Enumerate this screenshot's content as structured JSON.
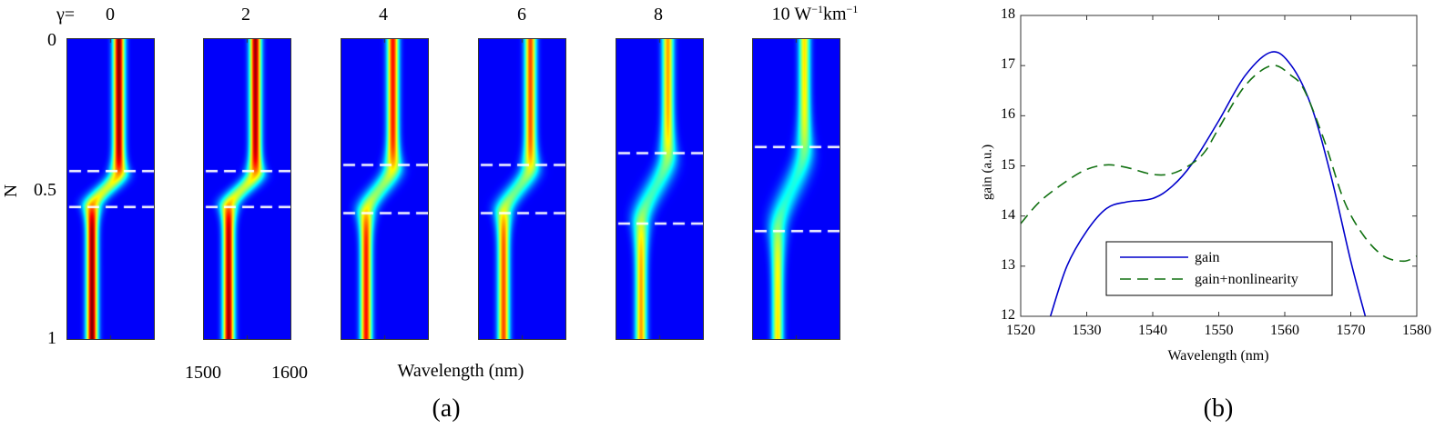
{
  "chart_data": [
    {
      "type": "heatmap",
      "panel_label": "(a)",
      "gamma_prefix": "γ=",
      "panels": [
        {
          "title": "0",
          "gamma": 0,
          "dashed_N": [
            0.44,
            0.56
          ],
          "peak": 1.0
        },
        {
          "title": "2",
          "gamma": 2,
          "dashed_N": [
            0.44,
            0.56
          ],
          "peak": 0.97
        },
        {
          "title": "4",
          "gamma": 4,
          "dashed_N": [
            0.42,
            0.58
          ],
          "peak": 0.85
        },
        {
          "title": "6",
          "gamma": 6,
          "dashed_N": [
            0.42,
            0.58
          ],
          "peak": 0.78
        },
        {
          "title": "8",
          "gamma": 8,
          "dashed_N": [
            0.38,
            0.615
          ],
          "peak": 0.68
        },
        {
          "title": "10",
          "gamma": 10,
          "dashed_N": [
            0.36,
            0.64
          ],
          "peak": 0.6
        }
      ],
      "unit_main": "W",
      "unit_sup1": "−1",
      "unit_km": "km",
      "unit_sup2": "−1",
      "ylabel": "N",
      "yticks": [
        "0",
        "0.5",
        "1"
      ],
      "ylim": [
        0,
        1
      ],
      "xlabel": "Wavelength (nm)",
      "xticks": [
        "1500",
        "1600"
      ],
      "xlim": [
        1500,
        1600
      ],
      "beam_center_nm": {
        "start": 1559,
        "end": 1528
      },
      "colormap": "jet",
      "dashed_line_color": "#ffffff"
    },
    {
      "type": "line",
      "panel_label": "(b)",
      "xlabel": "Wavelength (nm)",
      "ylabel": "gain (a.u.)",
      "xlim": [
        1520,
        1580
      ],
      "ylim": [
        12,
        18
      ],
      "xticks": [
        "1520",
        "1530",
        "1540",
        "1550",
        "1560",
        "1570",
        "1580"
      ],
      "yticks": [
        "12",
        "13",
        "14",
        "15",
        "16",
        "17",
        "18"
      ],
      "grid": false,
      "legend_position": "bottom-center",
      "series": [
        {
          "name": "gain",
          "color": "#0000cc",
          "style": "solid",
          "x": [
            1524.5,
            1527,
            1530,
            1533,
            1536,
            1540,
            1543,
            1546,
            1550,
            1554,
            1558,
            1561,
            1564,
            1567,
            1570,
            1572.2
          ],
          "y": [
            12,
            13.0,
            13.7,
            14.15,
            14.28,
            14.35,
            14.6,
            15.05,
            15.9,
            16.8,
            17.27,
            17.0,
            16.2,
            14.8,
            13.1,
            12
          ]
        },
        {
          "name": "gain+nonlinearity",
          "color": "#107010",
          "style": "dashed",
          "x": [
            1520,
            1523,
            1527,
            1530,
            1533,
            1536,
            1540,
            1543,
            1546,
            1548,
            1550,
            1554,
            1558,
            1561,
            1563,
            1566,
            1569,
            1572,
            1575,
            1578,
            1580
          ],
          "y": [
            13.85,
            14.3,
            14.7,
            14.93,
            15.02,
            14.97,
            14.83,
            14.85,
            15.05,
            15.3,
            15.75,
            16.6,
            17.0,
            16.8,
            16.5,
            15.5,
            14.3,
            13.6,
            13.2,
            13.1,
            13.2
          ]
        }
      ]
    }
  ]
}
